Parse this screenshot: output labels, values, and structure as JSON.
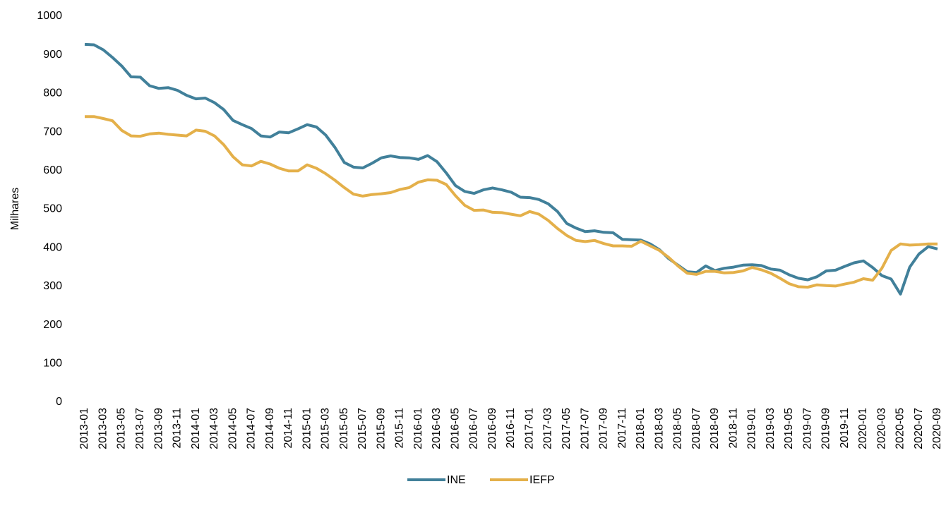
{
  "chart_data": {
    "type": "line",
    "y_label": "Milhares",
    "categories": [
      "2013-01",
      null,
      "2013-03",
      null,
      "2013-05",
      null,
      "2013-07",
      null,
      "2013-09",
      null,
      "2013-11",
      null,
      "2014-01",
      null,
      "2014-03",
      null,
      "2014-05",
      null,
      "2014-07",
      null,
      "2014-09",
      null,
      "2014-11",
      null,
      "2015-01",
      null,
      "2015-03",
      null,
      "2015-05",
      null,
      "2015-07",
      null,
      "2015-09",
      null,
      "2015-11",
      null,
      "2016-01",
      null,
      "2016-03",
      null,
      "2016-05",
      null,
      "2016-07",
      null,
      "2016-09",
      null,
      "2016-11",
      null,
      "2017-01",
      null,
      "2017-03",
      null,
      "2017-05",
      null,
      "2017-07",
      null,
      "2017-09",
      null,
      "2017-11",
      null,
      "2018-01",
      null,
      "2018-03",
      null,
      "2018-05",
      null,
      "2018-07",
      null,
      "2018-09",
      null,
      "2018-11",
      null,
      "2019-01",
      null,
      "2019-03",
      null,
      "2019-05",
      null,
      "2019-07",
      null,
      "2019-09",
      null,
      "2019-11",
      null,
      "2020-01",
      null,
      "2020-03",
      null,
      "2020-05",
      null,
      "2020-07",
      null,
      "2020-09"
    ],
    "series": [
      {
        "name": "INE",
        "color": "#41809a",
        "values": [
          927,
          926,
          913,
          893,
          871,
          843,
          842,
          820,
          813,
          815,
          808,
          795,
          786,
          788,
          776,
          758,
          730,
          719,
          709,
          690,
          687,
          700,
          698,
          708,
          719,
          713,
          692,
          660,
          621,
          609,
          607,
          619,
          633,
          638,
          634,
          633,
          629,
          639,
          623,
          594,
          561,
          546,
          541,
          550,
          555,
          550,
          544,
          531,
          530,
          525,
          514,
          494,
          463,
          451,
          442,
          444,
          440,
          439,
          422,
          421,
          420,
          410,
          395,
          372,
          355,
          338,
          336,
          353,
          341,
          347,
          350,
          355,
          356,
          354,
          345,
          342,
          330,
          321,
          317,
          325,
          340,
          342,
          352,
          361,
          366,
          349,
          328,
          319,
          280,
          350,
          384,
          403,
          397
        ]
      },
      {
        "name": "IEFP",
        "color": "#e4b04a",
        "values": [
          740,
          740,
          735,
          729,
          704,
          690,
          689,
          695,
          697,
          694,
          692,
          690,
          705,
          702,
          690,
          667,
          636,
          615,
          612,
          624,
          617,
          606,
          599,
          599,
          615,
          606,
          592,
          575,
          556,
          539,
          534,
          538,
          540,
          543,
          551,
          556,
          570,
          576,
          575,
          564,
          535,
          510,
          497,
          498,
          492,
          491,
          487,
          483,
          494,
          487,
          471,
          450,
          432,
          419,
          416,
          419,
          411,
          405,
          405,
          404,
          417,
          405,
          393,
          375,
          353,
          334,
          331,
          339,
          339,
          335,
          336,
          340,
          349,
          343,
          334,
          321,
          307,
          299,
          298,
          304,
          302,
          301,
          306,
          311,
          320,
          316,
          347,
          393,
          410,
          407,
          408,
          410,
          410
        ]
      }
    ],
    "ylim": [
      0,
      1000
    ],
    "yticks": [
      0,
      100,
      200,
      300,
      400,
      500,
      600,
      700,
      800,
      900,
      1000
    ],
    "grid": false,
    "legend": "bottom"
  }
}
